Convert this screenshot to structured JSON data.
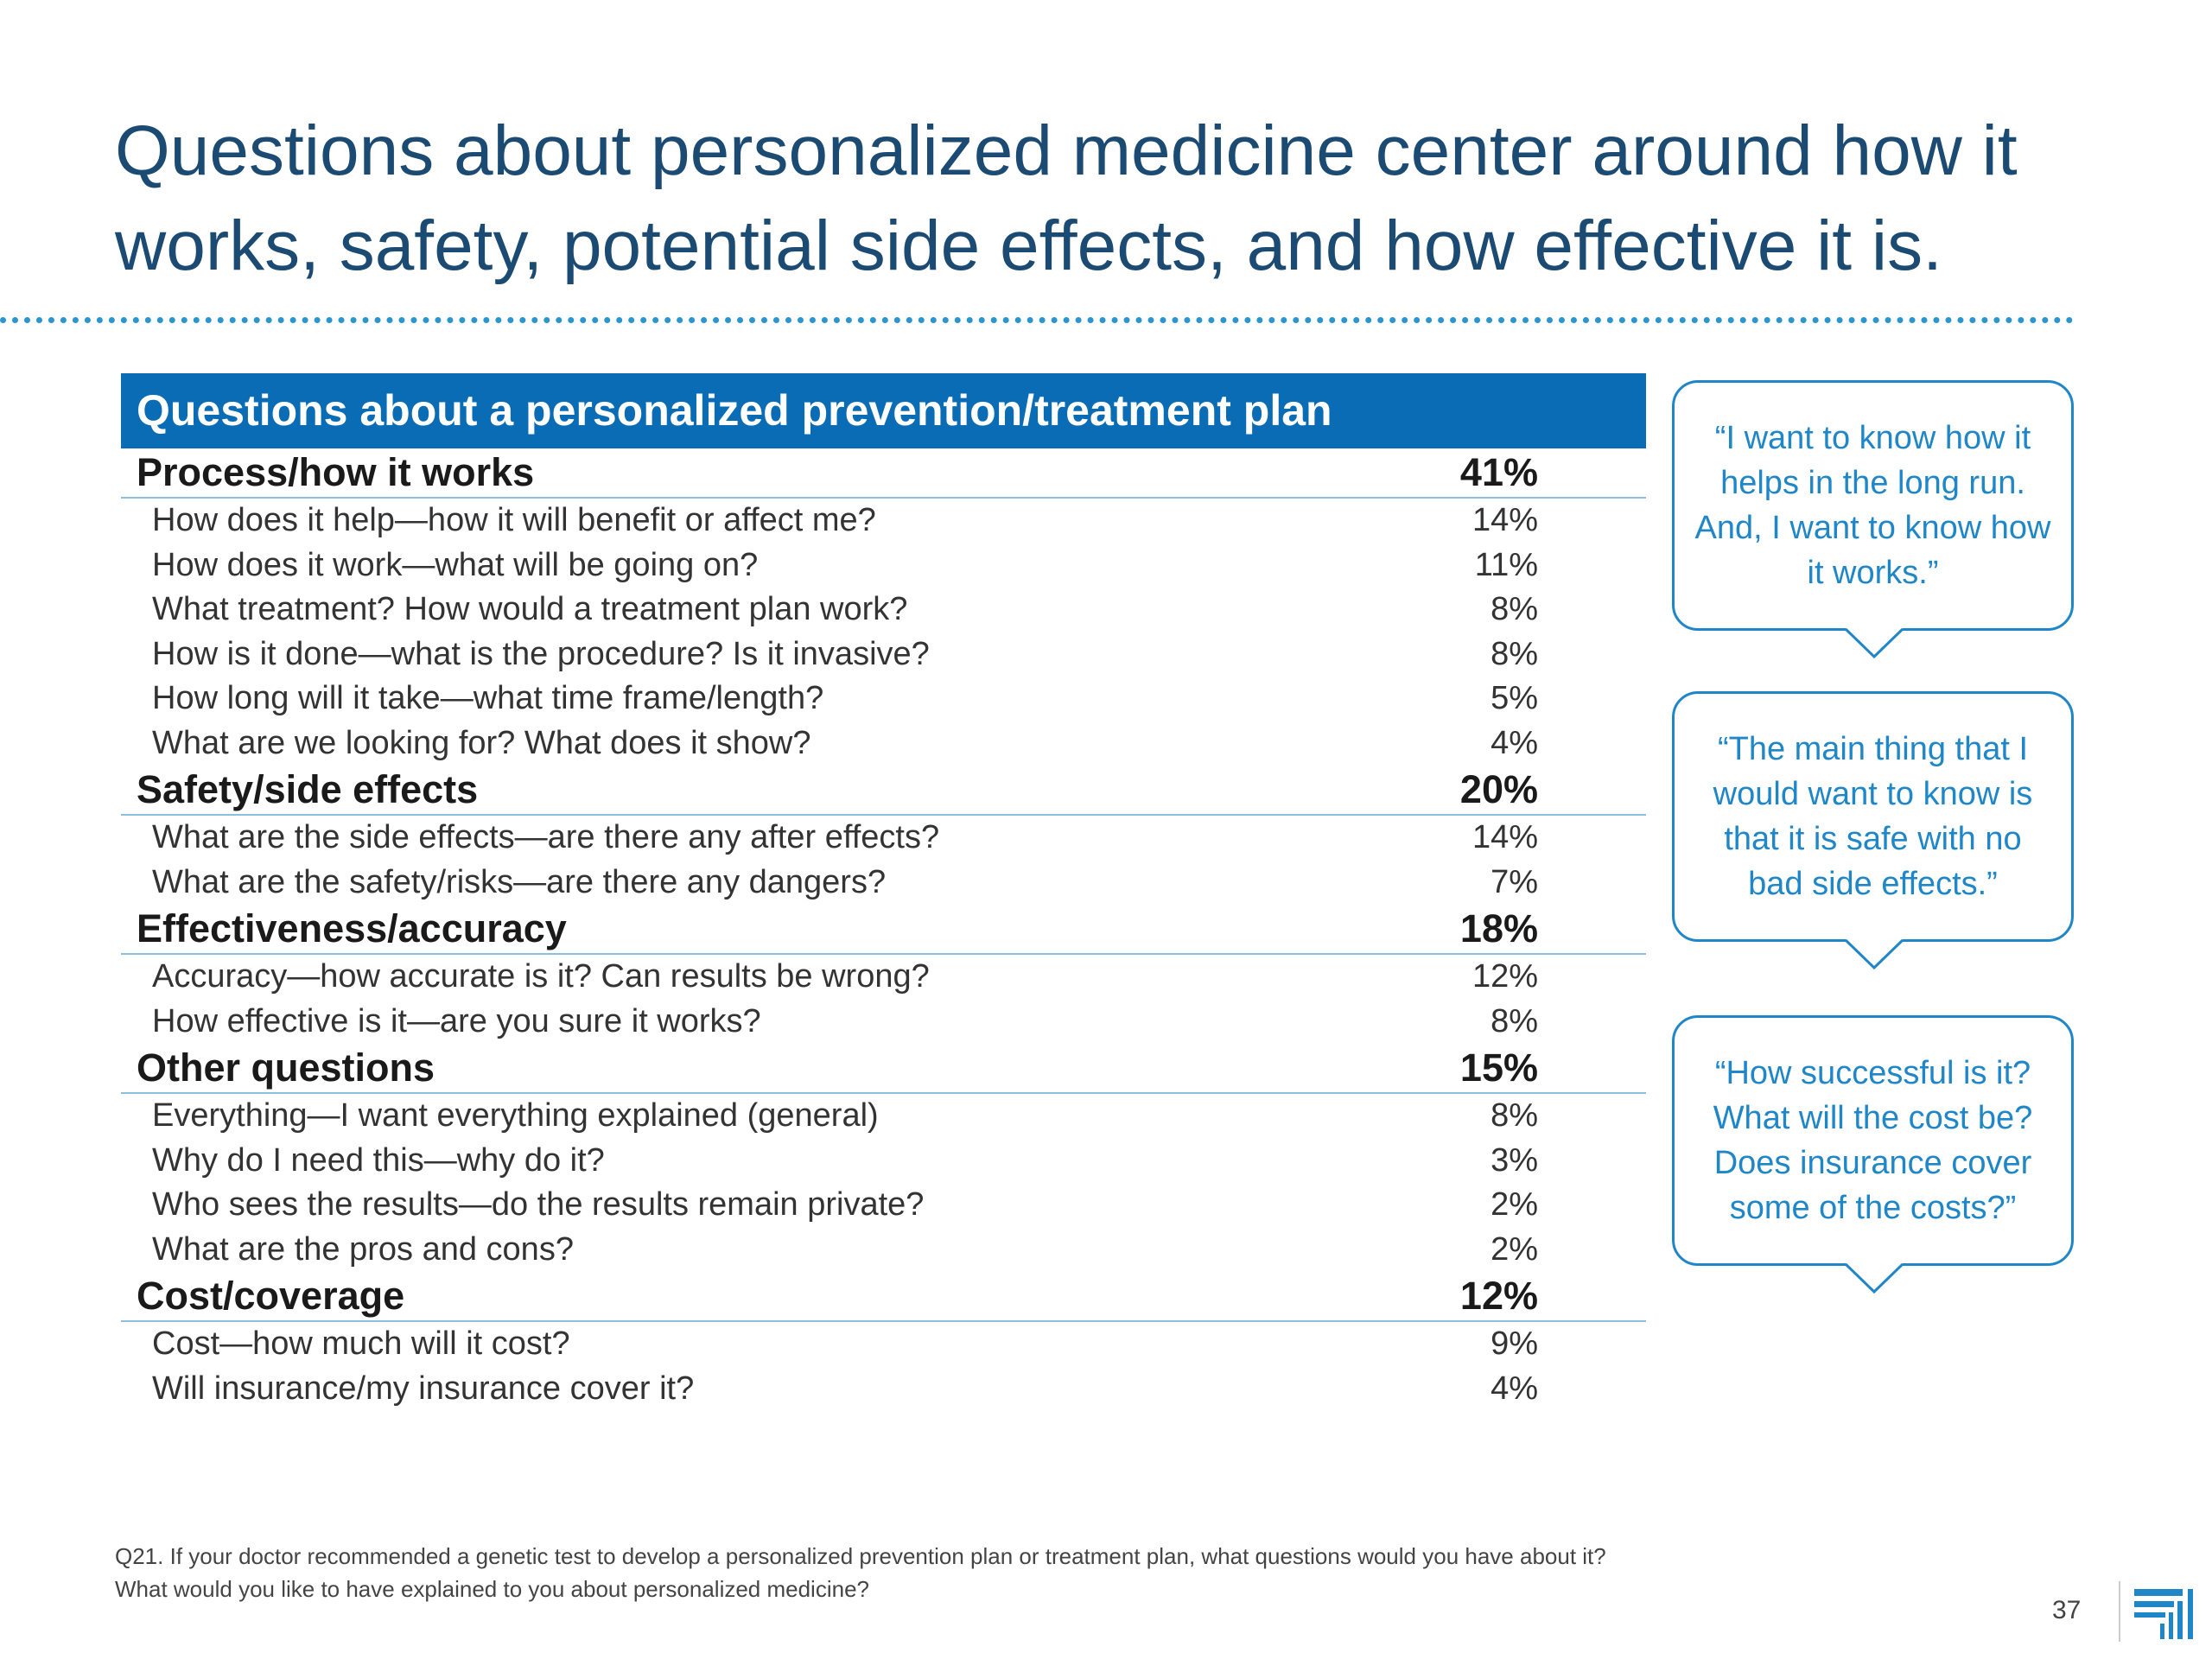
{
  "title": "Questions about personalized medicine center around how it works, safety, potential side effects, and how effective it is.",
  "table": {
    "header": "Questions about a personalized prevention/treatment plan",
    "categories": [
      {
        "label": "Process/how it works",
        "pct": "41%",
        "items": [
          {
            "label": "How does it help—how it will benefit or affect me?",
            "pct": "14%"
          },
          {
            "label": "How does it work—what will be going on?",
            "pct": "11%"
          },
          {
            "label": "What treatment? How would a treatment plan work?",
            "pct": "8%"
          },
          {
            "label": "How is it done—what is the procedure? Is it invasive?",
            "pct": "8%"
          },
          {
            "label": "How long will it take—what time frame/length?",
            "pct": "5%"
          },
          {
            "label": "What are we looking for? What does it show?",
            "pct": "4%"
          }
        ]
      },
      {
        "label": "Safety/side effects",
        "pct": "20%",
        "items": [
          {
            "label": "What are the side effects—are there any after effects?",
            "pct": "14%"
          },
          {
            "label": "What are the safety/risks—are there any dangers?",
            "pct": "7%"
          }
        ]
      },
      {
        "label": "Effectiveness/accuracy",
        "pct": "18%",
        "items": [
          {
            "label": "Accuracy—how accurate is it? Can results be wrong?",
            "pct": "12%"
          },
          {
            "label": "How effective is it—are you sure it works?",
            "pct": "8%"
          }
        ]
      },
      {
        "label": "Other questions",
        "pct": "15%",
        "items": [
          {
            "label": "Everything—I want everything explained (general)",
            "pct": "8%"
          },
          {
            "label": "Why do I need this—why do it?",
            "pct": "3%"
          },
          {
            "label": "Who sees the results—do the results remain private?",
            "pct": "2%"
          },
          {
            "label": "What are the pros and cons?",
            "pct": "2%"
          }
        ]
      },
      {
        "label": "Cost/coverage",
        "pct": "12%",
        "items": [
          {
            "label": "Cost—how much will it cost?",
            "pct": "9%"
          },
          {
            "label": "Will insurance/my insurance cover it?",
            "pct": "4%"
          }
        ]
      }
    ]
  },
  "quotes": [
    "“I want to know how it helps in the long run. And, I want to know how it works.”",
    "“The main thing that I would want to know is that it is safe with no bad side effects.”",
    "“How successful is it? What will the cost be? Does insurance cover some of the costs?”"
  ],
  "footnote": {
    "line1": "Q21. If your doctor recommended a genetic test to develop a personalized prevention plan or treatment plan, what questions would you have about it?",
    "line2": "What would you like to have explained to you about personalized medicine?"
  },
  "page_number": "37",
  "colors": {
    "title": "#1b4a73",
    "header_bg": "#0a6cb5",
    "accent": "#1f86c8",
    "rule": "#8bbfe0"
  },
  "icons": {
    "logo": "brand-logo-icon"
  }
}
